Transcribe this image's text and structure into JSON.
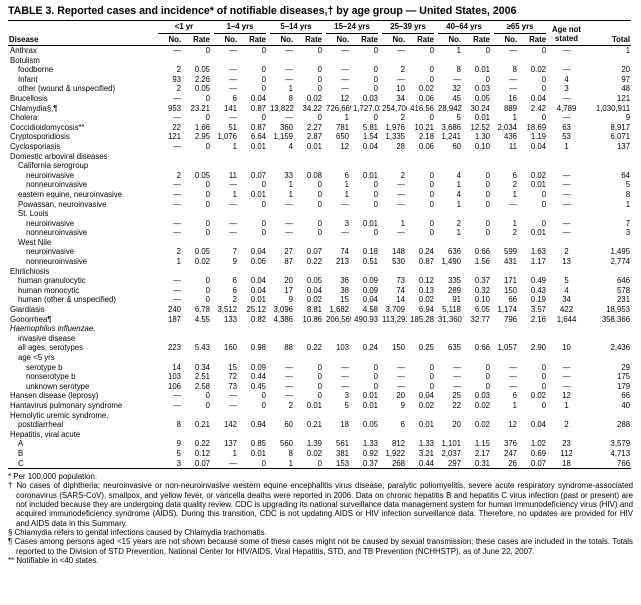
{
  "title": "TABLE 3. Reported cases and incidence* of notifiable diseases,† by age group — United States, 2006",
  "colors": {
    "text": "#000000",
    "background": "#ffffff",
    "rule": "#000000"
  },
  "header": {
    "disease": "Disease",
    "age_groups": [
      "<1 yr",
      "1–4 yrs",
      "5–14 yrs",
      "15–24 yrs",
      "25–39 yrs",
      "40–64 yrs",
      "≥65 yrs"
    ],
    "sub": [
      "No.",
      "Rate"
    ],
    "age_not_stated_line1": "Age not",
    "age_not_stated_line2": "stated",
    "total": "Total"
  },
  "rows": [
    {
      "label": "Anthrax",
      "indent": 0,
      "values": [
        "—",
        "0",
        "—",
        "0",
        "—",
        "0",
        "—",
        "0",
        "—",
        "0",
        "1",
        "0",
        "—",
        "0",
        "—",
        "1"
      ]
    },
    {
      "label": "Botulism",
      "indent": 0,
      "section": true
    },
    {
      "label": "foodborne",
      "indent": 1,
      "values": [
        "2",
        "0.05",
        "—",
        "0",
        "—",
        "0",
        "—",
        "0",
        "2",
        "0",
        "8",
        "0.01",
        "8",
        "0.02",
        "—",
        "20"
      ]
    },
    {
      "label": "Infant",
      "indent": 1,
      "values": [
        "93",
        "2.26",
        "—",
        "0",
        "—",
        "0",
        "—",
        "0",
        "—",
        "0",
        "—",
        "0",
        "—",
        "0",
        "4",
        "97"
      ]
    },
    {
      "label": "other (wound & unspecified)",
      "indent": 1,
      "values": [
        "2",
        "0.05",
        "—",
        "0",
        "1",
        "0",
        "—",
        "0",
        "10",
        "0.02",
        "32",
        "0.03",
        "—",
        "0",
        "3",
        "48"
      ]
    },
    {
      "label": "Brucellosis",
      "indent": 0,
      "values": [
        "—",
        "0",
        "6",
        "0.04",
        "8",
        "0.02",
        "12",
        "0.03",
        "34",
        "0.06",
        "45",
        "0.05",
        "16",
        "0.04",
        "—",
        "121"
      ]
    },
    {
      "label": "Chlamydia§,¶",
      "indent": 0,
      "values": [
        "953",
        "23.21",
        "141",
        "0.87",
        "13,822",
        "34.22",
        "726,669",
        "1,727.03",
        "254,706",
        "416.56",
        "28,942",
        "30.24",
        "889",
        "2.42",
        "4,789",
        "1,030,911"
      ]
    },
    {
      "label": "Cholera",
      "indent": 0,
      "values": [
        "—",
        "0",
        "—",
        "0",
        "—",
        "0",
        "1",
        "0",
        "2",
        "0",
        "5",
        "0.01",
        "1",
        "0",
        "—",
        "9"
      ]
    },
    {
      "label": "Coccidioidomycosis**",
      "indent": 0,
      "values": [
        "22",
        "1.66",
        "51",
        "0.87",
        "360",
        "2.27",
        "781",
        "5.81",
        "1,976",
        "10.21",
        "3,686",
        "12.52",
        "2,034",
        "18.69",
        "63",
        "8,917"
      ]
    },
    {
      "label": "Cryptosporidiosis",
      "indent": 0,
      "values": [
        "121",
        "2.95",
        "1,076",
        "6.64",
        "1,159",
        "2.87",
        "650",
        "1.54",
        "1,335",
        "2.18",
        "1,241",
        "1.30",
        "436",
        "1.19",
        "53",
        "6,071"
      ]
    },
    {
      "label": "Cyclosporiasis",
      "indent": 0,
      "values": [
        "—",
        "0",
        "1",
        "0.01",
        "4",
        "0.01",
        "12",
        "0.04",
        "28",
        "0.06",
        "60",
        "0.10",
        "11",
        "0.04",
        "1",
        "137"
      ]
    },
    {
      "label": "Domestic arboviral diseases",
      "indent": 0,
      "section": true
    },
    {
      "label": "California serogroup",
      "indent": 1,
      "section": true
    },
    {
      "label": "neuroinvasive",
      "indent": 2,
      "values": [
        "2",
        "0.05",
        "11",
        "0.07",
        "33",
        "0.08",
        "6",
        "0.01",
        "2",
        "0",
        "4",
        "0",
        "6",
        "0.02",
        "—",
        "64"
      ]
    },
    {
      "label": "nonneuroinvasive",
      "indent": 2,
      "values": [
        "—",
        "0",
        "—",
        "0",
        "1",
        "0",
        "1",
        "0",
        "—",
        "0",
        "1",
        "0",
        "2",
        "0.01",
        "—",
        "5"
      ]
    },
    {
      "label": "eastern equine, neuroinvasive",
      "indent": 1,
      "values": [
        "—",
        "0",
        "1",
        "0.01",
        "1",
        "0",
        "1",
        "0",
        "—",
        "0",
        "4",
        "0",
        "1",
        "0",
        "—",
        "8"
      ]
    },
    {
      "label": "Powassan, neuroinvasive",
      "indent": 1,
      "values": [
        "—",
        "0",
        "—",
        "0",
        "—",
        "0",
        "—",
        "0",
        "—",
        "0",
        "1",
        "0",
        "—",
        "0",
        "—",
        "1"
      ]
    },
    {
      "label": "St. Louis",
      "indent": 1,
      "section": true
    },
    {
      "label": "neuroinvasive",
      "indent": 2,
      "values": [
        "—",
        "0",
        "—",
        "0",
        "—",
        "0",
        "3",
        "0.01",
        "1",
        "0",
        "2",
        "0",
        "1",
        "0",
        "—",
        "7"
      ]
    },
    {
      "label": "nonneuroinvasive",
      "indent": 2,
      "values": [
        "—",
        "0",
        "—",
        "0",
        "—",
        "0",
        "—",
        "0",
        "—",
        "0",
        "1",
        "0",
        "2",
        "0.01",
        "—",
        "3"
      ]
    },
    {
      "label": "West Nile",
      "indent": 1,
      "section": true
    },
    {
      "label": "neuroinvasive",
      "indent": 2,
      "values": [
        "2",
        "0.05",
        "7",
        "0.04",
        "27",
        "0.07",
        "74",
        "0.18",
        "148",
        "0.24",
        "636",
        "0.66",
        "599",
        "1.63",
        "2",
        "1,495"
      ]
    },
    {
      "label": "nonneuroinvasive",
      "indent": 2,
      "values": [
        "1",
        "0.02",
        "9",
        "0.06",
        "87",
        "0.22",
        "213",
        "0.51",
        "530",
        "0.87",
        "1,490",
        "1.56",
        "431",
        "1.17",
        "13",
        "2,774"
      ]
    },
    {
      "label": "Ehrlichiosis",
      "indent": 0,
      "section": true
    },
    {
      "label": "human granulocytic",
      "indent": 1,
      "values": [
        "—",
        "0",
        "6",
        "0.04",
        "20",
        "0.05",
        "36",
        "0.09",
        "73",
        "0.12",
        "335",
        "0.37",
        "171",
        "0.49",
        "5",
        "646"
      ]
    },
    {
      "label": "human monocytic",
      "indent": 1,
      "values": [
        "—",
        "0",
        "6",
        "0.04",
        "17",
        "0.04",
        "38",
        "0.09",
        "74",
        "0.13",
        "289",
        "0.32",
        "150",
        "0.43",
        "4",
        "578"
      ]
    },
    {
      "label": "human (other & unspecified)",
      "indent": 1,
      "values": [
        "—",
        "0",
        "2",
        "0.01",
        "9",
        "0.02",
        "15",
        "0.04",
        "14",
        "0.02",
        "91",
        "0.10",
        "66",
        "0.19",
        "34",
        "231"
      ]
    },
    {
      "label": "Giardiasis",
      "indent": 0,
      "values": [
        "240",
        "6.78",
        "3,512",
        "25.12",
        "3,096",
        "8.81",
        "1,682",
        "4.58",
        "3,709",
        "6.94",
        "5,118",
        "6.05",
        "1,174",
        "3.57",
        "422",
        "18,953"
      ]
    },
    {
      "label": "Gonorrhea¶",
      "indent": 0,
      "values": [
        "187",
        "4.55",
        "133",
        "0.82",
        "4,386",
        "10.86",
        "206,569",
        "490.93",
        "113,291",
        "185.28",
        "31,360",
        "32.77",
        "796",
        "2.16",
        "1,644",
        "358,366"
      ]
    },
    {
      "label": "Haemophilus influenzae,",
      "indent": 0,
      "section": true,
      "italic": true
    },
    {
      "label": "invasive disease",
      "indent": 1,
      "section": true
    },
    {
      "label": "all ages, serotypes",
      "indent": 1,
      "values": [
        "223",
        "5.43",
        "160",
        "0.98",
        "88",
        "0.22",
        "103",
        "0.24",
        "150",
        "0.25",
        "635",
        "0.66",
        "1,057",
        "2.90",
        "10",
        "2,436"
      ]
    },
    {
      "label": "age <5 yrs",
      "indent": 1,
      "section": true
    },
    {
      "label": "serotype b",
      "indent": 2,
      "values": [
        "14",
        "0.34",
        "15",
        "0.09",
        "—",
        "0",
        "—",
        "0",
        "—",
        "0",
        "—",
        "0",
        "—",
        "0",
        "—",
        "29"
      ]
    },
    {
      "label": "nonserotype b",
      "indent": 2,
      "values": [
        "103",
        "2.51",
        "72",
        "0.44",
        "—",
        "0",
        "—",
        "0",
        "—",
        "0",
        "—",
        "0",
        "—",
        "0",
        "—",
        "175"
      ]
    },
    {
      "label": "unknown serotype",
      "indent": 2,
      "values": [
        "106",
        "2.58",
        "73",
        "0.45",
        "—",
        "0",
        "—",
        "0",
        "—",
        "0",
        "—",
        "0",
        "—",
        "0",
        "—",
        "179"
      ]
    },
    {
      "label": "Hansen disease (leprosy)",
      "indent": 0,
      "values": [
        "—",
        "0",
        "—",
        "0",
        "—",
        "0",
        "3",
        "0.01",
        "20",
        "0.04",
        "25",
        "0.03",
        "6",
        "0.02",
        "12",
        "66"
      ]
    },
    {
      "label": "Hantavirus pulmonary syndrome",
      "indent": 0,
      "values": [
        "—",
        "0",
        "—",
        "0",
        "2",
        "0.01",
        "5",
        "0.01",
        "9",
        "0.02",
        "22",
        "0.02",
        "1",
        "0",
        "1",
        "40"
      ]
    },
    {
      "label": "Hemolytic uremic syndrome,",
      "indent": 0,
      "section": true
    },
    {
      "label": "postdiarrheal",
      "indent": 1,
      "values": [
        "8",
        "0.21",
        "142",
        "0.94",
        "60",
        "0.21",
        "18",
        "0.05",
        "6",
        "0.01",
        "20",
        "0.02",
        "12",
        "0.04",
        "2",
        "288"
      ]
    },
    {
      "label": "Hepatitis, viral acute",
      "indent": 0,
      "section": true
    },
    {
      "label": "A",
      "indent": 1,
      "values": [
        "9",
        "0.22",
        "137",
        "0.85",
        "560",
        "1.39",
        "561",
        "1.33",
        "812",
        "1.33",
        "1,101",
        "1.15",
        "376",
        "1.02",
        "23",
        "3,579"
      ]
    },
    {
      "label": "B",
      "indent": 1,
      "values": [
        "5",
        "0.12",
        "1",
        "0.01",
        "8",
        "0.02",
        "381",
        "0.92",
        "1,922",
        "3.21",
        "2,037",
        "2.17",
        "247",
        "0.69",
        "112",
        "4,713"
      ]
    },
    {
      "label": "C",
      "indent": 1,
      "values": [
        "3",
        "0.07",
        "—",
        "0",
        "1",
        "0",
        "153",
        "0.37",
        "268",
        "0.44",
        "297",
        "0.31",
        "26",
        "0.07",
        "18",
        "766"
      ]
    }
  ],
  "footnotes": [
    {
      "symbol": "*",
      "text": "Per 100,000 population."
    },
    {
      "symbol": "†",
      "text": "No cases of diphtheria; neuroinvasive or non-neuroinvasive western equine encephalitis virus disease, paralytic poliomyelitis, severe acute respiratory syndrome-associated coronavirus (SARS-CoV), smallpox, and yellow fever, or varicella deaths were reported in 2006. Data on chronic hepatitis B and hepatitis C virus infection (past or present) are not included because they are undergoing data quality review. CDC is upgrading its national surveillance data management system for human immunodeficiency virus (HIV) and acquired immunodeficiency syndrome (AIDS). During this transition, CDC is not updating AIDS or HIV infection surveillance data. Therefore, no updates are provided for HIV and AIDS data in this Summary."
    },
    {
      "symbol": "§",
      "text": "Chlamydia refers to genital infections caused by Chlamydia trachomatis."
    },
    {
      "symbol": "¶",
      "text": "Cases among persons aged <15 years are not shown because some of these cases might not be caused by sexual transmission; these cases are included in the totals. Totals reported to the Division of STD Prevention, National Center for HIV/AIDS, Viral Hepatitis, STD, and TB Prevention (NCHHSTP), as of June 22, 2007."
    },
    {
      "symbol": "**",
      "text": "Notifiable in <40 states."
    }
  ]
}
